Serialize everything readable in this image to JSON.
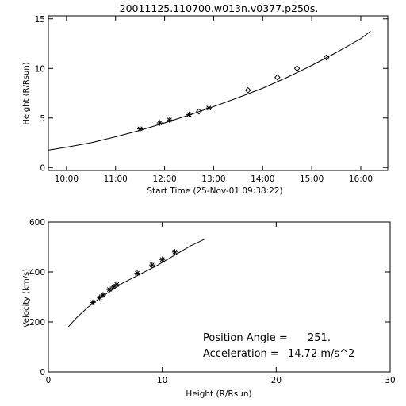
{
  "chart_data": [
    {
      "type": "scatter",
      "title": "20011125.110700.w013n.v0377.p250s.",
      "xlabel": "Start Time (25-Nov-01 09:38:22)",
      "ylabel": "Height (R/Rsun)",
      "xlim": [
        9.63,
        16.55
      ],
      "ylim": [
        -0.3,
        15.3
      ],
      "x_ticks": [
        {
          "value": 10,
          "label": "10:00"
        },
        {
          "value": 11,
          "label": "11:00"
        },
        {
          "value": 12,
          "label": "12:00"
        },
        {
          "value": 13,
          "label": "13:00"
        },
        {
          "value": 14,
          "label": "14:00"
        },
        {
          "value": 15,
          "label": "15:00"
        },
        {
          "value": 16,
          "label": "16:00"
        }
      ],
      "y_ticks": [
        {
          "value": 0,
          "label": "0"
        },
        {
          "value": 5,
          "label": "5"
        },
        {
          "value": 10,
          "label": "10"
        },
        {
          "value": 15,
          "label": "15"
        }
      ],
      "fit_line": {
        "x": [
          9.63,
          10.0,
          10.5,
          11.0,
          11.5,
          12.0,
          12.5,
          13.0,
          13.5,
          14.0,
          14.5,
          15.0,
          15.5,
          16.0,
          16.2
        ],
        "y": [
          1.75,
          2.05,
          2.5,
          3.1,
          3.75,
          4.5,
          5.3,
          6.15,
          7.05,
          8.0,
          9.1,
          10.3,
          11.6,
          13.0,
          13.75
        ]
      },
      "series": [
        {
          "marker": "star",
          "points": [
            {
              "x": 11.5,
              "y": 3.9
            },
            {
              "x": 11.9,
              "y": 4.5
            },
            {
              "x": 12.1,
              "y": 4.8
            },
            {
              "x": 12.5,
              "y": 5.35
            },
            {
              "x": 12.9,
              "y": 6.0
            }
          ]
        },
        {
          "marker": "diamond",
          "points": [
            {
              "x": 12.7,
              "y": 5.65
            },
            {
              "x": 13.7,
              "y": 7.8
            },
            {
              "x": 14.3,
              "y": 9.1
            },
            {
              "x": 14.7,
              "y": 10.0
            },
            {
              "x": 15.3,
              "y": 11.1
            }
          ]
        }
      ]
    },
    {
      "type": "scatter",
      "xlabel": "Height (R/Rsun)",
      "ylabel": "Velocity (km/s)",
      "xlim": [
        0,
        30
      ],
      "ylim": [
        0,
        600
      ],
      "x_ticks": [
        {
          "value": 0,
          "label": "0"
        },
        {
          "value": 10,
          "label": "10"
        },
        {
          "value": 20,
          "label": "20"
        },
        {
          "value": 30,
          "label": "30"
        }
      ],
      "y_ticks": [
        {
          "value": 0,
          "label": "0"
        },
        {
          "value": 200,
          "label": "200"
        },
        {
          "value": 400,
          "label": "400"
        },
        {
          "value": 600,
          "label": "600"
        }
      ],
      "fit_line": {
        "x": [
          1.7,
          2.5,
          3.5,
          4.5,
          5.5,
          6.5,
          8.0,
          9.5,
          11.0,
          12.5,
          13.8
        ],
        "y": [
          178,
          218,
          260,
          295,
          325,
          355,
          390,
          425,
          465,
          505,
          533
        ]
      },
      "series": [
        {
          "marker": "star",
          "points": [
            {
              "x": 3.9,
              "y": 278
            },
            {
              "x": 4.5,
              "y": 298
            },
            {
              "x": 4.8,
              "y": 308
            },
            {
              "x": 5.35,
              "y": 330
            },
            {
              "x": 5.7,
              "y": 340
            },
            {
              "x": 6.0,
              "y": 350
            },
            {
              "x": 7.8,
              "y": 395
            },
            {
              "x": 9.1,
              "y": 428
            },
            {
              "x": 10.0,
              "y": 450
            },
            {
              "x": 11.1,
              "y": 480
            }
          ]
        }
      ],
      "annotations": [
        {
          "label": "Position Angle =",
          "value": "251."
        },
        {
          "label": "Acceleration =",
          "value": "14.72 m/s^2"
        }
      ]
    }
  ]
}
